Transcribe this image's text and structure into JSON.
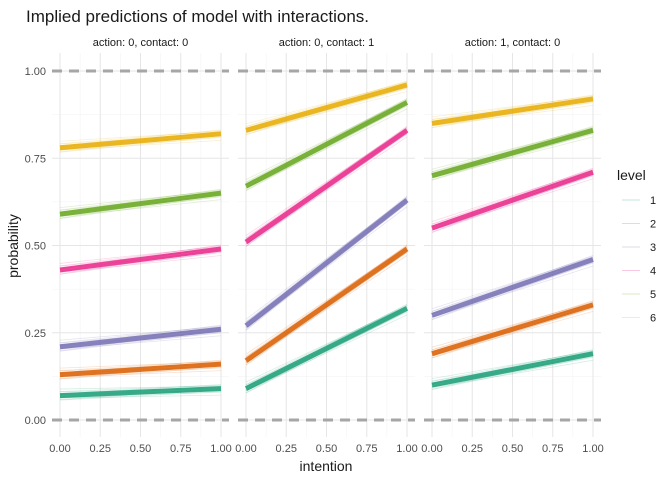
{
  "chart_data": {
    "type": "line",
    "title": "Implied predictions of model with interactions.",
    "xlabel": "intention",
    "ylabel": "probability",
    "xlim": [
      0,
      1
    ],
    "ylim": [
      0,
      1
    ],
    "x_ticks": [
      "0.00",
      "0.25",
      "0.50",
      "0.75",
      "1.00"
    ],
    "y_ticks": [
      "0.00",
      "0.25",
      "0.50",
      "0.75",
      "1.00"
    ],
    "x": [
      0,
      1
    ],
    "reference_lines": [
      0,
      1
    ],
    "legend": {
      "title": "level",
      "position": "right",
      "entries": [
        "1",
        "2",
        "3",
        "4",
        "5",
        "6"
      ]
    },
    "colors": [
      "#1B9E77",
      "#D95F02",
      "#7570B3",
      "#E7298A",
      "#66A61E",
      "#E6AB02"
    ],
    "panels": [
      {
        "label": "action: 0, contact: 0",
        "series": [
          {
            "values": [
              0.07,
              0.09
            ]
          },
          {
            "values": [
              0.13,
              0.16
            ]
          },
          {
            "values": [
              0.21,
              0.26
            ]
          },
          {
            "values": [
              0.43,
              0.49
            ]
          },
          {
            "values": [
              0.59,
              0.65
            ]
          },
          {
            "values": [
              0.78,
              0.82
            ]
          }
        ]
      },
      {
        "label": "action: 0, contact: 1",
        "series": [
          {
            "values": [
              0.09,
              0.32
            ]
          },
          {
            "values": [
              0.17,
              0.49
            ]
          },
          {
            "values": [
              0.27,
              0.63
            ]
          },
          {
            "values": [
              0.51,
              0.83
            ]
          },
          {
            "values": [
              0.67,
              0.91
            ]
          },
          {
            "values": [
              0.83,
              0.96
            ]
          }
        ]
      },
      {
        "label": "action: 1, contact: 0",
        "series": [
          {
            "values": [
              0.1,
              0.19
            ]
          },
          {
            "values": [
              0.19,
              0.33
            ]
          },
          {
            "values": [
              0.3,
              0.46
            ]
          },
          {
            "values": [
              0.55,
              0.71
            ]
          },
          {
            "values": [
              0.7,
              0.83
            ]
          },
          {
            "values": [
              0.85,
              0.92
            ]
          }
        ]
      }
    ]
  }
}
